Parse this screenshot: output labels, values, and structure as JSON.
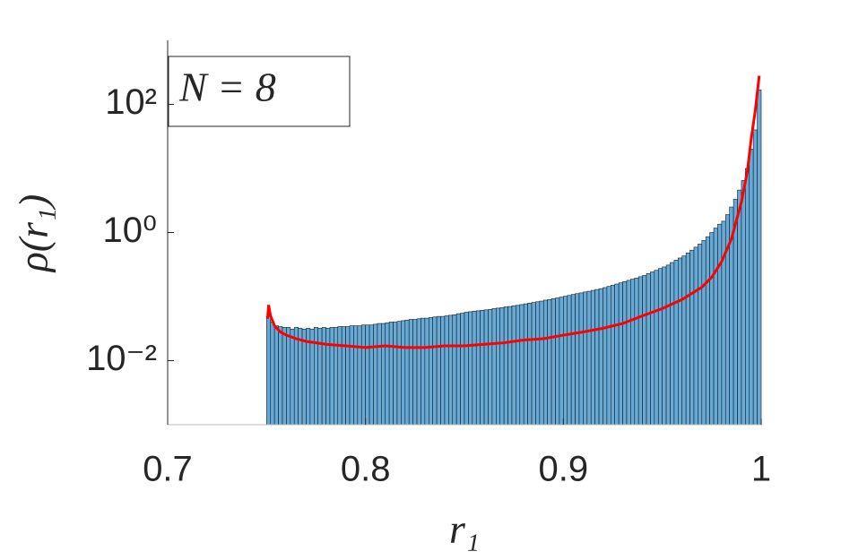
{
  "chart_data": {
    "type": "histogram",
    "xlabel": "r₁",
    "ylabel": "ρ(r₁)",
    "annotation": "N = 8",
    "bins": [
      0.75,
      0.752,
      0.754,
      0.756,
      0.758,
      0.76,
      0.762,
      0.764,
      0.766,
      0.768,
      0.77,
      0.772,
      0.774,
      0.776,
      0.778,
      0.78,
      0.782,
      0.784,
      0.786,
      0.788,
      0.79,
      0.792,
      0.794,
      0.796,
      0.798,
      0.8,
      0.802,
      0.804,
      0.806,
      0.808,
      0.81,
      0.812,
      0.814,
      0.816,
      0.818,
      0.82,
      0.822,
      0.824,
      0.826,
      0.828,
      0.83,
      0.832,
      0.834,
      0.836,
      0.838,
      0.84,
      0.842,
      0.844,
      0.846,
      0.848,
      0.85,
      0.852,
      0.854,
      0.856,
      0.858,
      0.86,
      0.862,
      0.864,
      0.866,
      0.868,
      0.87,
      0.872,
      0.874,
      0.876,
      0.878,
      0.88,
      0.882,
      0.884,
      0.886,
      0.888,
      0.89,
      0.892,
      0.894,
      0.896,
      0.898,
      0.9,
      0.902,
      0.904,
      0.906,
      0.908,
      0.91,
      0.912,
      0.914,
      0.916,
      0.918,
      0.92,
      0.922,
      0.924,
      0.926,
      0.928,
      0.93,
      0.932,
      0.934,
      0.936,
      0.938,
      0.94,
      0.942,
      0.944,
      0.946,
      0.948,
      0.95,
      0.952,
      0.954,
      0.956,
      0.958,
      0.96,
      0.962,
      0.964,
      0.966,
      0.968,
      0.97,
      0.972,
      0.974,
      0.976,
      0.978,
      0.98,
      0.982,
      0.984,
      0.986,
      0.988,
      0.99,
      0.992,
      0.994,
      0.996,
      0.998,
      1
    ],
    "values": [
      0.049,
      0.04,
      0.035,
      0.034,
      0.033,
      0.033,
      0.031,
      0.033,
      0.032,
      0.031,
      0.032,
      0.031,
      0.033,
      0.032,
      0.033,
      0.032,
      0.033,
      0.033,
      0.034,
      0.034,
      0.034,
      0.035,
      0.035,
      0.035,
      0.036,
      0.036,
      0.036,
      0.037,
      0.038,
      0.038,
      0.039,
      0.04,
      0.04,
      0.041,
      0.042,
      0.043,
      0.044,
      0.044,
      0.045,
      0.046,
      0.046,
      0.047,
      0.048,
      0.049,
      0.049,
      0.05,
      0.051,
      0.052,
      0.054,
      0.055,
      0.057,
      0.058,
      0.059,
      0.06,
      0.061,
      0.062,
      0.063,
      0.065,
      0.066,
      0.067,
      0.069,
      0.07,
      0.072,
      0.073,
      0.075,
      0.077,
      0.079,
      0.081,
      0.083,
      0.085,
      0.088,
      0.09,
      0.093,
      0.095,
      0.098,
      0.101,
      0.104,
      0.108,
      0.111,
      0.114,
      0.118,
      0.121,
      0.125,
      0.129,
      0.133,
      0.138,
      0.144,
      0.15,
      0.157,
      0.164,
      0.171,
      0.179,
      0.187,
      0.195,
      0.204,
      0.214,
      0.228,
      0.242,
      0.257,
      0.274,
      0.29,
      0.31,
      0.34,
      0.37,
      0.4,
      0.43,
      0.48,
      0.53,
      0.59,
      0.66,
      0.75,
      0.86,
      1.0,
      1.17,
      1.35,
      1.5,
      1.9,
      2.5,
      3.3,
      4.6,
      6.5,
      10,
      20,
      40,
      168
    ],
    "color": "#66aad7",
    "line": {
      "color": "#ff0000",
      "x": [
        0.7505,
        0.751,
        0.752,
        0.754,
        0.757,
        0.76,
        0.765,
        0.77,
        0.78,
        0.79,
        0.8,
        0.81,
        0.82,
        0.83,
        0.84,
        0.85,
        0.86,
        0.87,
        0.88,
        0.89,
        0.9,
        0.91,
        0.92,
        0.93,
        0.94,
        0.95,
        0.96,
        0.97,
        0.975,
        0.98,
        0.985,
        0.99,
        0.993,
        0.995,
        0.997,
        0.998,
        0.999
      ],
      "y": [
        0.045,
        0.074,
        0.05,
        0.035,
        0.028,
        0.025,
        0.022,
        0.02,
        0.018,
        0.017,
        0.016,
        0.017,
        0.016,
        0.016,
        0.017,
        0.017,
        0.018,
        0.019,
        0.021,
        0.022,
        0.025,
        0.028,
        0.032,
        0.038,
        0.05,
        0.065,
        0.09,
        0.14,
        0.2,
        0.35,
        0.8,
        3,
        9,
        30,
        80,
        150,
        280
      ]
    },
    "xlim": [
      0.7,
      1
    ],
    "xticks": [
      0.7,
      0.8,
      0.9,
      1
    ],
    "ylim": [
      0.001,
      1000
    ],
    "yscale": "log",
    "yticks": [
      {
        "value": 0.01,
        "label": "10⁻²"
      },
      {
        "value": 1,
        "label": "10⁰"
      },
      {
        "value": 100,
        "label": "10²"
      }
    ]
  }
}
